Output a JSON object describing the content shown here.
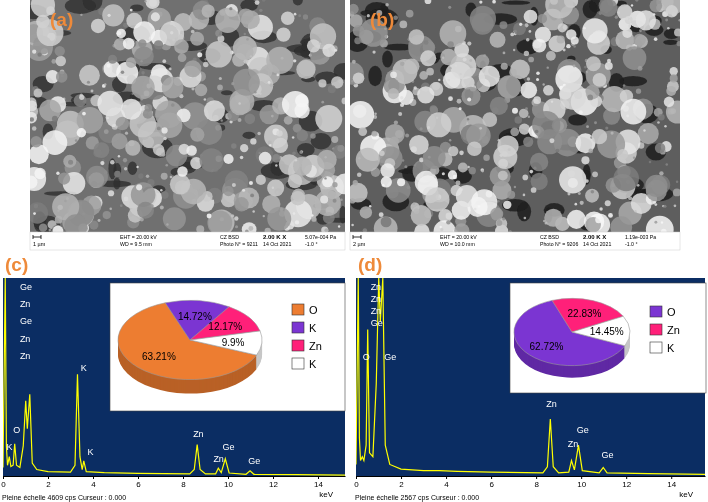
{
  "images": [
    {
      "label": "(a)",
      "scale_bar": "1 µm",
      "info": [
        [
          "EHT = 20.00 kV",
          "CZ BSD",
          "2.00 K X",
          "5.07e-004 Pa"
        ],
        [
          "WD = 9.5 mm",
          "Photo N° = 9211",
          "14 Oct 2021",
          "-1.0 °"
        ]
      ]
    },
    {
      "label": "(b)",
      "scale_bar": "2 µm",
      "info": [
        [
          "EHT = 20.00 kV",
          "CZ BSD",
          "2.00 K X",
          "1.19e-003 Pa"
        ],
        [
          "WD = 10.0 mm",
          "Photo N° = 9206",
          "14 Oct 2021",
          "-1.0 °"
        ]
      ]
    }
  ],
  "chart_data": [
    {
      "type": "line",
      "title": "(c)",
      "xlabel": "keV",
      "caption": "Pleine échelle 4609 cps Curseur : 0.000",
      "color": "#ffff00",
      "tick_labels": "x",
      "x": [
        0,
        0.1,
        0.15,
        0.2,
        0.28,
        0.35,
        0.45,
        0.52,
        0.6,
        0.75,
        0.9,
        1.01,
        1.08,
        1.19,
        1.3,
        1.5,
        2,
        3,
        3.2,
        3.31,
        3.42,
        3.52,
        3.59,
        3.7,
        4.5,
        6,
        8.3,
        8.5,
        8.63,
        8.76,
        9,
        9.45,
        9.57,
        9.7,
        9.88,
        10.05,
        10.8,
        10.98,
        11.15,
        13,
        15.2
      ],
      "values": [
        200,
        4609,
        700,
        250,
        450,
        220,
        250,
        750,
        250,
        200,
        700,
        1750,
        1100,
        1900,
        300,
        150,
        100,
        90,
        250,
        2370,
        450,
        150,
        350,
        100,
        80,
        60,
        50,
        150,
        730,
        150,
        50,
        50,
        180,
        80,
        400,
        70,
        40,
        120,
        40,
        30,
        20
      ],
      "xlim": [
        0,
        15.2
      ],
      "xticks": [
        0,
        2,
        4,
        6,
        8,
        10,
        12,
        14
      ],
      "ylim": [
        0,
        4609
      ],
      "annotations": [
        {
          "text": "Ge",
          "x": 0.75,
          "y": 4328
        },
        {
          "text": "Zn",
          "x": 0.75,
          "y": 3928
        },
        {
          "text": "Ge",
          "x": 0.75,
          "y": 3528
        },
        {
          "text": "Zn",
          "x": 0.75,
          "y": 3128
        },
        {
          "text": "Zn",
          "x": 0.75,
          "y": 2728
        },
        {
          "text": "O",
          "x": 0.45,
          "y": 1000
        },
        {
          "text": "K",
          "x": 0.15,
          "y": 600
        },
        {
          "text": "K",
          "x": 3.45,
          "y": 2450
        },
        {
          "text": "K",
          "x": 3.75,
          "y": 500
        },
        {
          "text": "Zn",
          "x": 8.45,
          "y": 900
        },
        {
          "text": "Zn",
          "x": 9.35,
          "y": 320
        },
        {
          "text": "Ge",
          "x": 9.75,
          "y": 600
        },
        {
          "text": "Ge",
          "x": 10.9,
          "y": 280
        }
      ]
    },
    {
      "type": "pie",
      "categories": [
        "O",
        "K",
        "Zn",
        "K"
      ],
      "values": [
        63.21,
        14.72,
        12.17,
        9.9
      ],
      "value_labels": [
        "63.21%",
        "14.72%",
        "12.17%",
        "9.9%"
      ],
      "colors": [
        "#ed7d31",
        "#7b35d2",
        "#ff2079",
        "#ffffff"
      ],
      "data_labels": true,
      "legend": "right"
    },
    {
      "type": "line",
      "title": "(d)",
      "xlabel": "keV",
      "caption": "Pleine échelle 2567 cps Curseur : 0.000",
      "color": "#ffff00",
      "tick_labels": "x",
      "x": [
        0,
        0.1,
        0.15,
        0.2,
        0.28,
        0.35,
        0.45,
        0.52,
        0.6,
        0.75,
        0.9,
        1.01,
        1.08,
        1.19,
        1.3,
        1.5,
        2,
        3,
        3.2,
        3.31,
        3.42,
        3.52,
        3.59,
        3.7,
        4.5,
        6,
        8.3,
        8.5,
        8.63,
        8.76,
        9,
        9.45,
        9.57,
        9.7,
        9.88,
        10.05,
        10.8,
        10.98,
        11.15,
        13,
        15.5
      ],
      "values": [
        150,
        2567,
        500,
        200,
        250,
        200,
        400,
        1900,
        300,
        250,
        1200,
        2567,
        2000,
        2567,
        400,
        150,
        90,
        70,
        70,
        70,
        70,
        70,
        70,
        70,
        60,
        50,
        40,
        120,
        740,
        120,
        40,
        50,
        200,
        80,
        400,
        70,
        40,
        110,
        40,
        30,
        20
      ],
      "xlim": [
        0,
        15.5
      ],
      "xticks": [
        0,
        2,
        4,
        6,
        8,
        10,
        12,
        14
      ],
      "ylim": [
        0,
        2567
      ],
      "annotations": [
        {
          "text": "Zn",
          "x": 0.65,
          "y": 2410
        },
        {
          "text": "Zn",
          "x": 0.65,
          "y": 2253
        },
        {
          "text": "Zn",
          "x": 0.65,
          "y": 2096
        },
        {
          "text": "Ge",
          "x": 0.65,
          "y": 1939
        },
        {
          "text": "O",
          "x": 0.3,
          "y": 1500
        },
        {
          "text": "Ge",
          "x": 1.25,
          "y": 1500
        },
        {
          "text": "Zn",
          "x": 8.45,
          "y": 900
        },
        {
          "text": "Zn",
          "x": 9.4,
          "y": 380
        },
        {
          "text": "Ge",
          "x": 9.8,
          "y": 560
        },
        {
          "text": "Ge",
          "x": 10.9,
          "y": 230
        }
      ]
    },
    {
      "type": "pie",
      "categories": [
        "O",
        "Zn",
        "K"
      ],
      "values": [
        62.72,
        22.83,
        14.45
      ],
      "value_labels": [
        "62.72%",
        "22.83%",
        "14.45%"
      ],
      "colors": [
        "#7b35d2",
        "#ff2079",
        "#ffffff"
      ],
      "data_labels": true,
      "legend": "right"
    }
  ]
}
